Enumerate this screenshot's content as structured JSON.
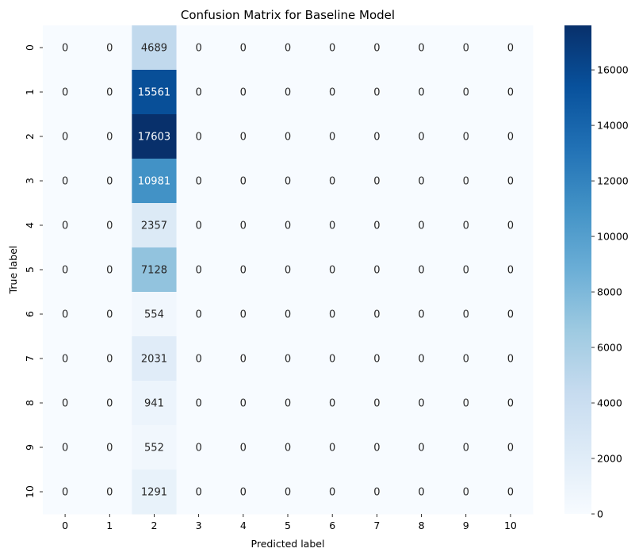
{
  "chart_data": {
    "type": "heatmap",
    "title": "Confusion Matrix for Baseline Model",
    "xlabel": "Predicted label",
    "ylabel": "True label",
    "x_categories": [
      "0",
      "1",
      "2",
      "3",
      "4",
      "5",
      "6",
      "7",
      "8",
      "9",
      "10"
    ],
    "y_categories": [
      "0",
      "1",
      "2",
      "3",
      "4",
      "5",
      "6",
      "7",
      "8",
      "9",
      "10"
    ],
    "matrix": [
      [
        0,
        0,
        4689,
        0,
        0,
        0,
        0,
        0,
        0,
        0,
        0
      ],
      [
        0,
        0,
        15561,
        0,
        0,
        0,
        0,
        0,
        0,
        0,
        0
      ],
      [
        0,
        0,
        17603,
        0,
        0,
        0,
        0,
        0,
        0,
        0,
        0
      ],
      [
        0,
        0,
        10981,
        0,
        0,
        0,
        0,
        0,
        0,
        0,
        0
      ],
      [
        0,
        0,
        2357,
        0,
        0,
        0,
        0,
        0,
        0,
        0,
        0
      ],
      [
        0,
        0,
        7128,
        0,
        0,
        0,
        0,
        0,
        0,
        0,
        0
      ],
      [
        0,
        0,
        554,
        0,
        0,
        0,
        0,
        0,
        0,
        0,
        0
      ],
      [
        0,
        0,
        2031,
        0,
        0,
        0,
        0,
        0,
        0,
        0,
        0
      ],
      [
        0,
        0,
        941,
        0,
        0,
        0,
        0,
        0,
        0,
        0,
        0
      ],
      [
        0,
        0,
        552,
        0,
        0,
        0,
        0,
        0,
        0,
        0,
        0
      ],
      [
        0,
        0,
        1291,
        0,
        0,
        0,
        0,
        0,
        0,
        0,
        0
      ]
    ],
    "colormap": "Blues",
    "color_range": [
      0,
      17603
    ],
    "colorbar_ticks": [
      0,
      2000,
      4000,
      6000,
      8000,
      10000,
      12000,
      14000,
      16000
    ]
  }
}
